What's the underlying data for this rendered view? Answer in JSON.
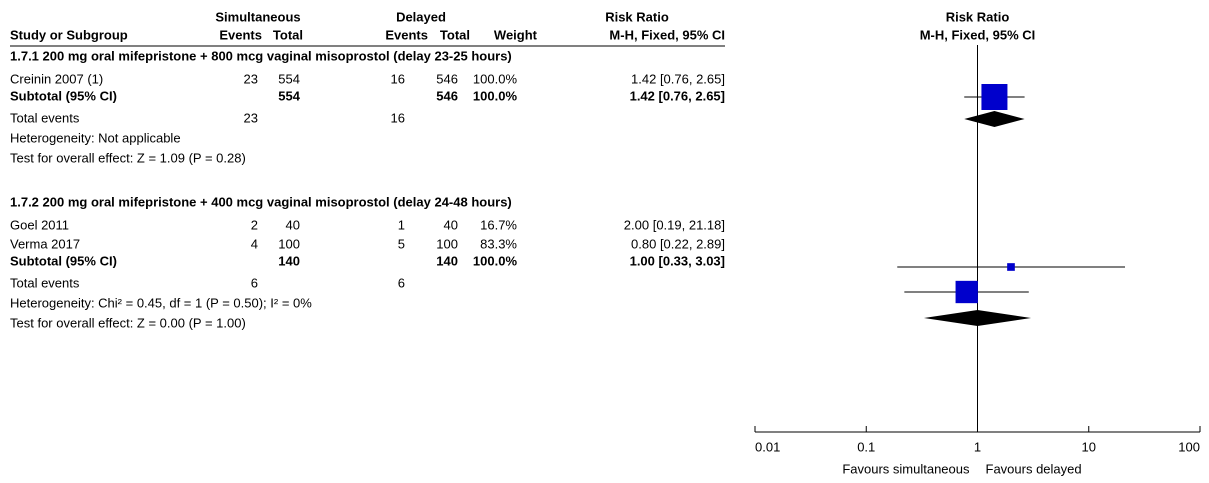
{
  "header": {
    "group1": "Simultaneous",
    "group2": "Delayed",
    "effect": "Risk Ratio",
    "columns": [
      "Study or Subgroup",
      "Events",
      "Total",
      "Events",
      "Total",
      "Weight",
      "M-H, Fixed, 95% CI"
    ]
  },
  "sections": [
    {
      "title": "1.7.1 200 mg oral mifepristone + 800 mcg vaginal misoprostol (delay 23-25 hours)",
      "studies": [
        [
          "Creinin 2007 (1)",
          "23",
          "554",
          "16",
          "546",
          "100.0%",
          "1.42 [0.76, 2.65]"
        ]
      ],
      "subtotal": [
        "Subtotal (95% CI)",
        "554",
        "546",
        "100.0%",
        "1.42 [0.76, 2.65]"
      ],
      "total_events": [
        "Total events",
        "23",
        "16"
      ],
      "heterogeneity": "Heterogeneity: Not applicable",
      "overall": "Test for overall effect: Z = 1.09 (P = 0.28)"
    },
    {
      "title": "1.7.2 200 mg oral mifepristone + 400 mcg vaginal misoprostol (delay 24-48 hours)",
      "studies": [
        [
          "Goel 2011",
          "2",
          "40",
          "1",
          "40",
          "16.7%",
          "2.00 [0.19, 21.18]"
        ],
        [
          "Verma 2017",
          "4",
          "100",
          "5",
          "100",
          "83.3%",
          "0.80 [0.22, 2.89]"
        ]
      ],
      "subtotal": [
        "Subtotal (95% CI)",
        "140",
        "140",
        "100.0%",
        "1.00 [0.33, 3.03]"
      ],
      "total_events": [
        "Total events",
        "6",
        "6"
      ],
      "heterogeneity": "Heterogeneity: Chi² = 0.45, df = 1 (P = 0.50); I² = 0%",
      "overall": "Test for overall effect: Z = 0.00 (P = 1.00)"
    }
  ],
  "chart_data": {
    "type": "forest",
    "title": "Risk Ratio",
    "subtitle": "M-H, Fixed, 95% CI",
    "log_scale": true,
    "xlim": [
      0.01,
      100
    ],
    "xticks": [
      0.01,
      0.1,
      1,
      10,
      100
    ],
    "xlabel_left": "Favours simultaneous",
    "xlabel_right": "Favours delayed",
    "color": "#0000cc",
    "studies": [
      {
        "ratio": 1.42,
        "lower": 0.76,
        "upper": 2.65,
        "weight": 100
      },
      {
        "ratio": 2.0,
        "lower": 0.19,
        "upper": 21.18,
        "weight": 16.7
      },
      {
        "ratio": 0.8,
        "lower": 0.22,
        "upper": 2.89,
        "weight": 83.3
      }
    ],
    "subtotals": [
      {
        "ratio": 1.42,
        "lower": 0.76,
        "upper": 2.65
      },
      {
        "ratio": 1.0,
        "lower": 0.33,
        "upper": 3.03
      }
    ]
  }
}
